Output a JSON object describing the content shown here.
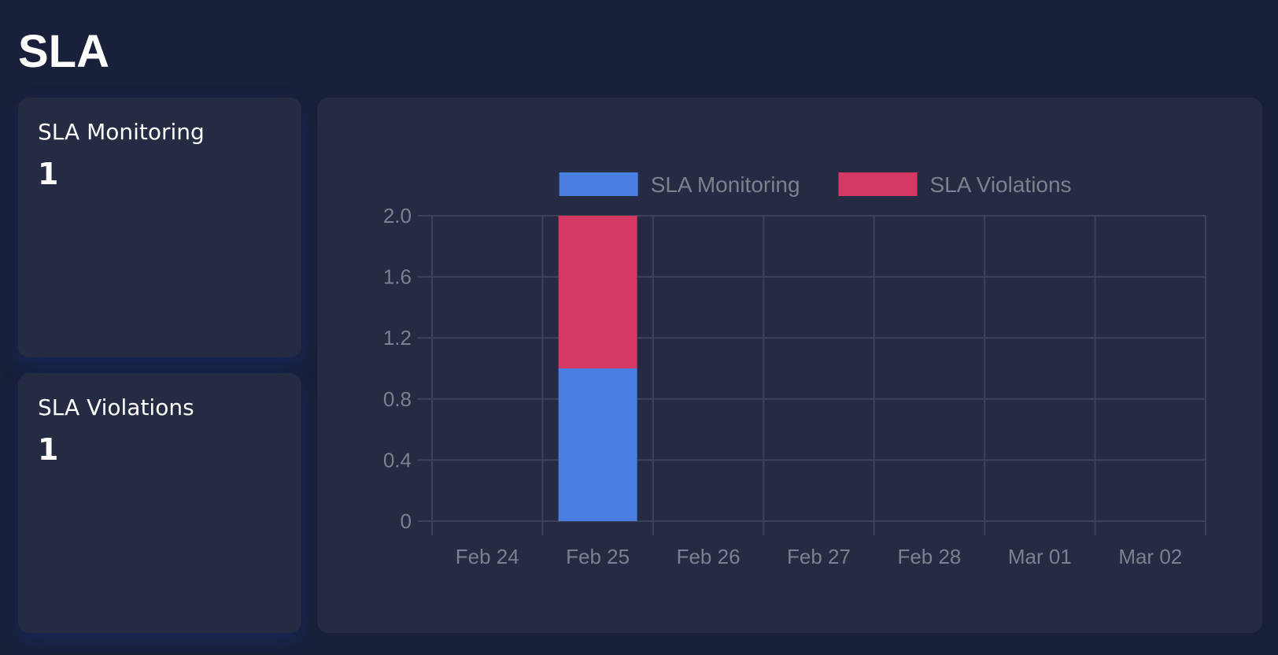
{
  "page": {
    "title": "SLA"
  },
  "stats": [
    {
      "label": "SLA Monitoring",
      "value": "1"
    },
    {
      "label": "SLA Violations",
      "value": "1"
    }
  ],
  "chart_data": {
    "type": "bar",
    "stacked": true,
    "categories": [
      "Feb 24",
      "Feb 25",
      "Feb 26",
      "Feb 27",
      "Feb 28",
      "Mar 01",
      "Mar 02"
    ],
    "series": [
      {
        "name": "SLA Monitoring",
        "color": "#4a7ee0",
        "values": [
          0,
          1,
          0,
          0,
          0,
          0,
          0
        ]
      },
      {
        "name": "SLA Violations",
        "color": "#d63864",
        "values": [
          0,
          1,
          0,
          0,
          0,
          0,
          0
        ]
      }
    ],
    "ylim": [
      0,
      2
    ],
    "yticks": [
      "0",
      "0.4",
      "0.8",
      "1.2",
      "1.6",
      "2.0"
    ],
    "legend": "top",
    "grid": true
  }
}
